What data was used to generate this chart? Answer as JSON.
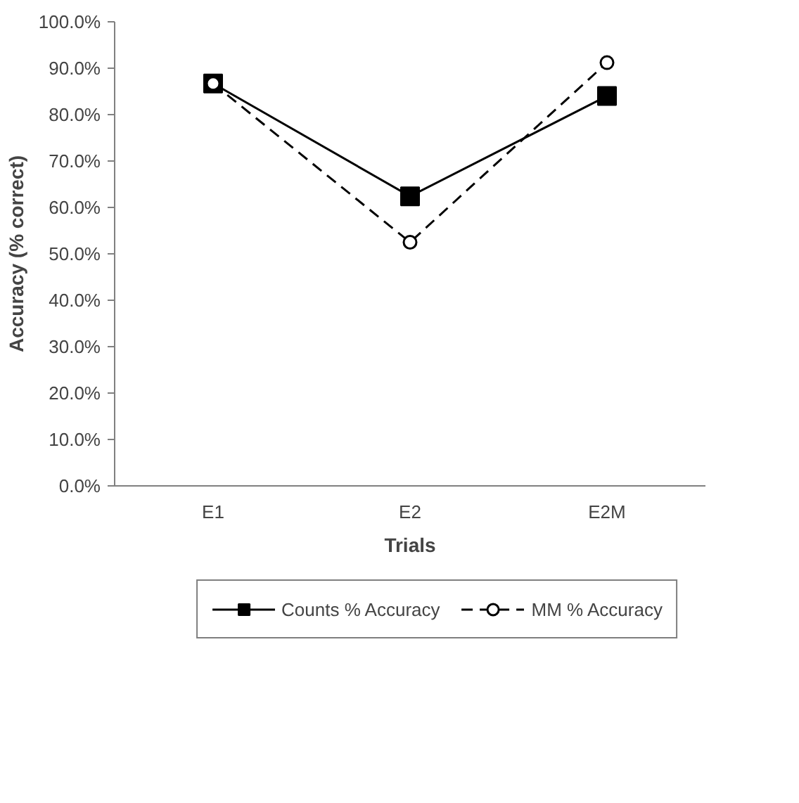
{
  "chart_data": {
    "type": "line",
    "xlabel": "Trials",
    "ylabel": "Accuracy (% correct)",
    "categories": [
      "E1",
      "E2",
      "E2M"
    ],
    "series": [
      {
        "name": "Counts % Accuracy",
        "color": "#000000",
        "values": [
          86.7,
          62.4,
          84.0
        ],
        "marker": "square",
        "line_style": "solid"
      },
      {
        "name": "MM % Accuracy",
        "color": "#000000",
        "values": [
          86.7,
          52.5,
          91.2
        ],
        "marker": "circle",
        "line_style": "dashed"
      }
    ],
    "ylim": [
      0,
      100
    ],
    "yticks": [
      {
        "value": 0,
        "label": "0.0%"
      },
      {
        "value": 10,
        "label": "10.0%"
      },
      {
        "value": 20,
        "label": "20.0%"
      },
      {
        "value": 30,
        "label": "30.0%"
      },
      {
        "value": 40,
        "label": "40.0%"
      },
      {
        "value": 50,
        "label": "50.0%"
      },
      {
        "value": 60,
        "label": "60.0%"
      },
      {
        "value": 70,
        "label": "70.0%"
      },
      {
        "value": 80,
        "label": "80.0%"
      },
      {
        "value": 90,
        "label": "90.0%"
      },
      {
        "value": 100,
        "label": "100.0%"
      }
    ],
    "grid": false,
    "legend": "bottom"
  }
}
